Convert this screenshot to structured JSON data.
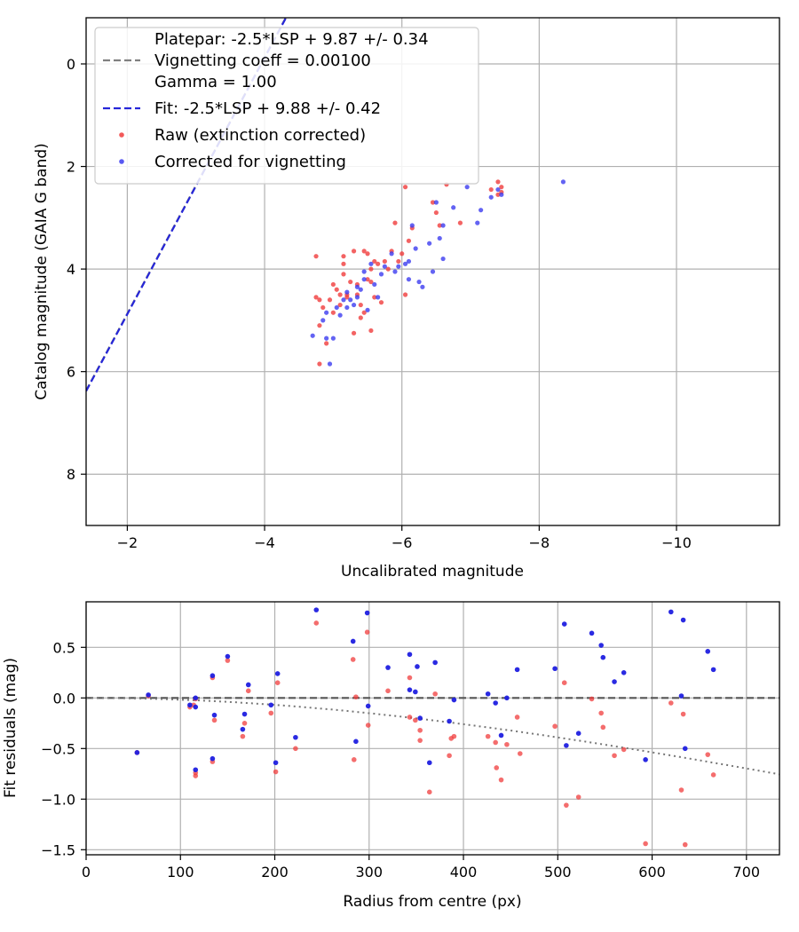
{
  "chart_data": [
    {
      "type": "scatter",
      "xlabel": "Uncalibrated magnitude",
      "ylabel": "Catalog magnitude (GAIA G band)",
      "xlim": [
        -1.4,
        -11.5
      ],
      "ylim": [
        9.0,
        -0.9
      ],
      "x_inverted": true,
      "y_inverted": true,
      "xticks": [
        -2,
        -4,
        -6,
        -8,
        -10
      ],
      "xtick_labels": [
        "−2",
        "−4",
        "−6",
        "−8",
        "−10"
      ],
      "yticks": [
        0,
        2,
        4,
        6,
        8
      ],
      "ytick_labels": [
        "0",
        "2",
        "4",
        "6",
        "8"
      ],
      "grid": true,
      "legend_position": "top-left",
      "lines": [
        {
          "name": "Vignetting coeff = 0.00100",
          "style": "dashed",
          "color": "#808080",
          "slope": 2.5,
          "intercept": 9.87
        },
        {
          "name": "Fit: -2.5*LSP + 9.88 +/- 0.42",
          "style": "dashed",
          "color": "#2626d9",
          "slope": 2.5,
          "intercept": 9.88
        }
      ],
      "legend": [
        {
          "label": "Platepar: -2.5*LSP + 9.87 +/- 0.34",
          "kind": "none"
        },
        {
          "label": "Vignetting coeff = 0.00100",
          "kind": "dashed",
          "color": "#808080"
        },
        {
          "label": "Gamma = 1.00",
          "kind": "none"
        },
        {
          "label": "Fit: -2.5*LSP + 9.88 +/- 0.42",
          "kind": "dashed",
          "color": "#2626d9"
        },
        {
          "label": "Raw (extinction corrected)",
          "kind": "dot",
          "color": "#f03c3c"
        },
        {
          "label": "Corrected for vignetting",
          "kind": "dot",
          "color": "#3c3cf0"
        }
      ],
      "series": [
        {
          "name": "Raw (extinction corrected)",
          "color": "#f03c3c",
          "points": [
            [
              -4.75,
              3.75
            ],
            [
              -4.75,
              4.55
            ],
            [
              -4.8,
              4.6
            ],
            [
              -4.85,
              4.75
            ],
            [
              -4.8,
              5.1
            ],
            [
              -4.8,
              5.85
            ],
            [
              -4.9,
              5.45
            ],
            [
              -4.95,
              4.6
            ],
            [
              -5.0,
              4.3
            ],
            [
              -5.0,
              4.85
            ],
            [
              -5.05,
              4.4
            ],
            [
              -5.1,
              4.7
            ],
            [
              -5.1,
              4.5
            ],
            [
              -5.15,
              3.75
            ],
            [
              -5.15,
              3.9
            ],
            [
              -5.15,
              4.1
            ],
            [
              -5.2,
              4.5
            ],
            [
              -5.2,
              4.55
            ],
            [
              -5.25,
              4.25
            ],
            [
              -5.3,
              3.65
            ],
            [
              -5.3,
              5.25
            ],
            [
              -5.35,
              4.3
            ],
            [
              -5.35,
              4.5
            ],
            [
              -5.4,
              4.7
            ],
            [
              -5.4,
              4.95
            ],
            [
              -5.45,
              3.65
            ],
            [
              -5.45,
              4.85
            ],
            [
              -5.5,
              3.7
            ],
            [
              -5.5,
              4.2
            ],
            [
              -5.55,
              4.0
            ],
            [
              -5.55,
              4.25
            ],
            [
              -5.55,
              5.2
            ],
            [
              -5.6,
              3.85
            ],
            [
              -5.6,
              4.55
            ],
            [
              -5.65,
              3.9
            ],
            [
              -5.7,
              4.65
            ],
            [
              -5.75,
              3.85
            ],
            [
              -5.8,
              4.0
            ],
            [
              -5.85,
              3.65
            ],
            [
              -5.9,
              3.1
            ],
            [
              -5.95,
              3.85
            ],
            [
              -6.0,
              3.7
            ],
            [
              -6.05,
              4.5
            ],
            [
              -6.05,
              2.4
            ],
            [
              -6.1,
              3.45
            ],
            [
              -6.15,
              3.2
            ],
            [
              -6.45,
              2.7
            ],
            [
              -6.5,
              2.9
            ],
            [
              -6.55,
              3.15
            ],
            [
              -6.85,
              3.1
            ],
            [
              -7.3,
              2.45
            ],
            [
              -7.4,
              2.3
            ],
            [
              -7.45,
              2.4
            ],
            [
              -7.4,
              2.55
            ],
            [
              -7.45,
              2.5
            ],
            [
              -6.65,
              2.35
            ]
          ]
        },
        {
          "name": "Corrected for vignetting",
          "color": "#3c3cf0",
          "points": [
            [
              -4.7,
              5.3
            ],
            [
              -4.85,
              5.0
            ],
            [
              -4.9,
              4.85
            ],
            [
              -4.9,
              5.35
            ],
            [
              -4.95,
              5.85
            ],
            [
              -5.0,
              5.35
            ],
            [
              -5.05,
              4.75
            ],
            [
              -5.1,
              4.9
            ],
            [
              -5.15,
              4.6
            ],
            [
              -5.2,
              4.75
            ],
            [
              -5.2,
              4.45
            ],
            [
              -5.25,
              4.6
            ],
            [
              -5.3,
              4.7
            ],
            [
              -5.35,
              4.55
            ],
            [
              -5.35,
              4.35
            ],
            [
              -5.4,
              4.4
            ],
            [
              -5.45,
              4.2
            ],
            [
              -5.45,
              4.05
            ],
            [
              -5.5,
              4.8
            ],
            [
              -5.55,
              3.9
            ],
            [
              -5.6,
              4.3
            ],
            [
              -5.65,
              4.55
            ],
            [
              -5.7,
              4.1
            ],
            [
              -5.75,
              3.95
            ],
            [
              -5.85,
              3.7
            ],
            [
              -5.9,
              4.05
            ],
            [
              -5.95,
              3.95
            ],
            [
              -6.05,
              3.9
            ],
            [
              -6.1,
              4.2
            ],
            [
              -6.1,
              3.85
            ],
            [
              -6.15,
              3.15
            ],
            [
              -6.2,
              3.6
            ],
            [
              -6.25,
              4.25
            ],
            [
              -6.3,
              4.35
            ],
            [
              -6.4,
              3.5
            ],
            [
              -6.45,
              4.05
            ],
            [
              -6.5,
              2.7
            ],
            [
              -6.55,
              3.4
            ],
            [
              -6.6,
              3.15
            ],
            [
              -6.6,
              3.8
            ],
            [
              -6.75,
              2.8
            ],
            [
              -6.95,
              2.4
            ],
            [
              -7.1,
              3.1
            ],
            [
              -7.15,
              2.85
            ],
            [
              -7.3,
              2.6
            ],
            [
              -7.4,
              2.45
            ],
            [
              -7.45,
              2.55
            ],
            [
              -8.35,
              2.3
            ]
          ]
        }
      ]
    },
    {
      "type": "scatter",
      "xlabel": "Radius from centre (px)",
      "ylabel": "Fit residuals (mag)",
      "xlim": [
        0,
        735
      ],
      "ylim": [
        -1.55,
        0.95
      ],
      "xticks": [
        0,
        100,
        200,
        300,
        400,
        500,
        600,
        700
      ],
      "xtick_labels": [
        "0",
        "100",
        "200",
        "300",
        "400",
        "500",
        "600",
        "700"
      ],
      "yticks": [
        0.5,
        0.0,
        -0.5,
        -1.0,
        -1.5
      ],
      "ytick_labels": [
        "0.5",
        "0.0",
        "−0.5",
        "−1.0",
        "−1.5"
      ],
      "grid": true,
      "lines": [
        {
          "name": "zero",
          "style": "dashed",
          "color": "#555555",
          "y": 0
        },
        {
          "name": "vignetting",
          "style": "dotted",
          "color": "#777777",
          "curve": "vignetting",
          "coeff": 0.001
        }
      ],
      "series": [
        {
          "name": "Raw (extinction corrected)",
          "color": "#f03c3c",
          "points": [
            [
              54,
              -0.54
            ],
            [
              66,
              0.02
            ],
            [
              110,
              -0.09
            ],
            [
              114,
              -0.07
            ],
            [
              116,
              -0.74
            ],
            [
              116,
              -0.77
            ],
            [
              116,
              -0.01
            ],
            [
              134,
              -0.63
            ],
            [
              134,
              0.2
            ],
            [
              136,
              -0.22
            ],
            [
              150,
              0.37
            ],
            [
              166,
              -0.38
            ],
            [
              168,
              -0.25
            ],
            [
              172,
              0.07
            ],
            [
              196,
              -0.15
            ],
            [
              201,
              -0.73
            ],
            [
              203,
              0.15
            ],
            [
              222,
              -0.5
            ],
            [
              244,
              0.74
            ],
            [
              283,
              0.38
            ],
            [
              286,
              0.01
            ],
            [
              298,
              0.65
            ],
            [
              284,
              -0.61
            ],
            [
              320,
              0.07
            ],
            [
              343,
              -0.19
            ],
            [
              343,
              0.2
            ],
            [
              349,
              -0.22
            ],
            [
              354,
              -0.32
            ],
            [
              354,
              -0.42
            ],
            [
              364,
              -0.93
            ],
            [
              370,
              0.04
            ],
            [
              385,
              -0.57
            ],
            [
              390,
              -0.38
            ],
            [
              426,
              -0.38
            ],
            [
              434,
              -0.44
            ],
            [
              435,
              -0.69
            ],
            [
              440,
              -0.81
            ],
            [
              446,
              -0.46
            ],
            [
              457,
              -0.19
            ],
            [
              460,
              -0.55
            ],
            [
              497,
              -0.28
            ],
            [
              507,
              0.15
            ],
            [
              509,
              -1.06
            ],
            [
              522,
              -0.98
            ],
            [
              536,
              -0.01
            ],
            [
              546,
              -0.15
            ],
            [
              548,
              -0.29
            ],
            [
              560,
              -0.57
            ],
            [
              570,
              -0.51
            ],
            [
              593,
              -1.44
            ],
            [
              620,
              -0.05
            ],
            [
              631,
              -0.91
            ],
            [
              633,
              -0.16
            ],
            [
              635,
              -1.45
            ],
            [
              659,
              -0.56
            ],
            [
              665,
              -0.76
            ],
            [
              387,
              -0.4
            ],
            [
              299,
              -0.27
            ]
          ]
        },
        {
          "name": "Corrected for vignetting",
          "color": "#1f1fe0",
          "points": [
            [
              54,
              -0.54
            ],
            [
              66,
              0.03
            ],
            [
              110,
              -0.07
            ],
            [
              116,
              0.0
            ],
            [
              116,
              -0.71
            ],
            [
              116,
              -0.09
            ],
            [
              134,
              0.22
            ],
            [
              134,
              -0.6
            ],
            [
              136,
              -0.17
            ],
            [
              150,
              0.41
            ],
            [
              166,
              -0.31
            ],
            [
              168,
              -0.16
            ],
            [
              172,
              0.13
            ],
            [
              196,
              -0.07
            ],
            [
              201,
              -0.64
            ],
            [
              203,
              0.24
            ],
            [
              222,
              -0.39
            ],
            [
              244,
              0.87
            ],
            [
              283,
              0.56
            ],
            [
              286,
              -0.43
            ],
            [
              298,
              0.84
            ],
            [
              299,
              -0.08
            ],
            [
              320,
              0.3
            ],
            [
              343,
              0.43
            ],
            [
              343,
              0.08
            ],
            [
              349,
              0.06
            ],
            [
              351,
              0.31
            ],
            [
              354,
              -0.2
            ],
            [
              364,
              -0.64
            ],
            [
              370,
              0.35
            ],
            [
              385,
              -0.23
            ],
            [
              390,
              -0.02
            ],
            [
              426,
              0.04
            ],
            [
              434,
              -0.05
            ],
            [
              440,
              -0.37
            ],
            [
              446,
              0.0
            ],
            [
              457,
              0.28
            ],
            [
              497,
              0.29
            ],
            [
              507,
              0.73
            ],
            [
              509,
              -0.47
            ],
            [
              522,
              -0.35
            ],
            [
              536,
              0.64
            ],
            [
              546,
              0.52
            ],
            [
              548,
              0.4
            ],
            [
              560,
              0.16
            ],
            [
              570,
              0.25
            ],
            [
              593,
              -0.61
            ],
            [
              620,
              0.85
            ],
            [
              631,
              0.02
            ],
            [
              633,
              0.77
            ],
            [
              635,
              -0.5
            ],
            [
              659,
              0.46
            ],
            [
              665,
              0.28
            ]
          ]
        }
      ]
    }
  ]
}
